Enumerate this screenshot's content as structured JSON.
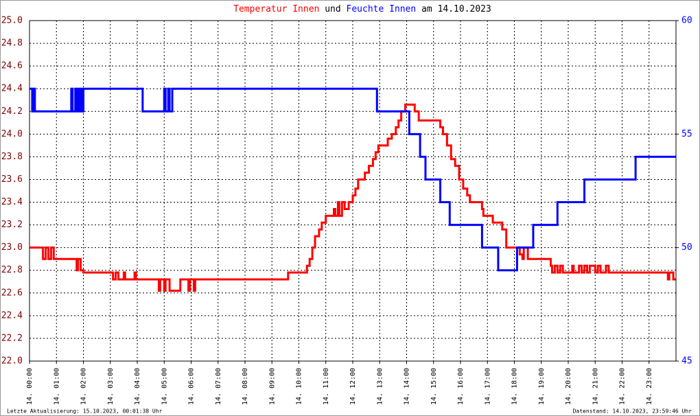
{
  "chart_data": {
    "type": "step-line",
    "title_parts": [
      "und",
      "am 14.10.2023"
    ],
    "footer_left": "Letzte Aktualisierung: 15.10.2023, 00:01:38 Uhr",
    "footer_right": "Datenstand: 14.10.2023, 23:59:46 Uhr",
    "xlim": [
      0,
      24
    ],
    "xticks": [
      {
        "value": 0,
        "label": "14. 00:00"
      },
      {
        "value": 1,
        "label": "14. 01:00"
      },
      {
        "value": 2,
        "label": "14. 02:00"
      },
      {
        "value": 3,
        "label": "14. 03:00"
      },
      {
        "value": 4,
        "label": "14. 04:00"
      },
      {
        "value": 5,
        "label": "14. 05:00"
      },
      {
        "value": 6,
        "label": "14. 06:00"
      },
      {
        "value": 7,
        "label": "14. 07:00"
      },
      {
        "value": 8,
        "label": "14. 08:00"
      },
      {
        "value": 9,
        "label": "14. 09:00"
      },
      {
        "value": 10,
        "label": "14. 10:00"
      },
      {
        "value": 11,
        "label": "14. 11:00"
      },
      {
        "value": 12,
        "label": "14. 12:00"
      },
      {
        "value": 13,
        "label": "14. 13:00"
      },
      {
        "value": 14,
        "label": "14. 14:00"
      },
      {
        "value": 15,
        "label": "14. 15:00"
      },
      {
        "value": 16,
        "label": "14. 16:00"
      },
      {
        "value": 17,
        "label": "14. 17:00"
      },
      {
        "value": 18,
        "label": "14. 18:00"
      },
      {
        "value": 19,
        "label": "14. 19:00"
      },
      {
        "value": 20,
        "label": "14. 20:00"
      },
      {
        "value": 21,
        "label": "14. 21:00"
      },
      {
        "value": 22,
        "label": "14. 22:00"
      },
      {
        "value": 23,
        "label": "14. 23:00"
      }
    ],
    "ylim": [
      22,
      25
    ],
    "yticks": [
      {
        "value": 22,
        "label": "22.0"
      },
      22.2,
      22.4,
      22.6,
      22.8,
      {
        "value": 23,
        "label": "23.0"
      },
      23.2,
      23.4,
      23.6,
      23.8,
      {
        "value": 24,
        "label": "24.0"
      },
      24.2,
      24.4,
      24.6,
      24.8,
      {
        "value": 25,
        "label": "25.0"
      }
    ],
    "y2lim": [
      45,
      60
    ],
    "y2ticks": [
      45,
      50,
      55,
      60
    ],
    "grid": true,
    "series": [
      {
        "name": "Temperatur Innen",
        "color": "#ff0000",
        "axis": "y",
        "x": [
          0,
          0.5,
          0.6,
          0.7,
          0.8,
          0.9,
          1.75,
          1.8,
          1.9,
          2.0,
          3.1,
          3.2,
          3.3,
          3.5,
          3.55,
          3.9,
          3.95,
          4.8,
          4.85,
          5.0,
          5.05,
          5.2,
          5.6,
          5.9,
          5.95,
          6.1,
          6.15,
          9.6,
          10.3,
          10.4,
          10.5,
          10.6,
          10.75,
          10.85,
          11.0,
          11.3,
          11.35,
          11.45,
          11.5,
          11.6,
          11.7,
          11.85,
          12.0,
          12.1,
          12.2,
          12.45,
          12.6,
          12.75,
          12.85,
          12.95,
          13.3,
          13.45,
          13.6,
          13.7,
          13.8,
          13.95,
          14.3,
          14.45,
          15.25,
          15.35,
          15.5,
          15.65,
          15.8,
          15.95,
          16.1,
          16.25,
          16.35,
          16.8,
          16.85,
          17.2,
          17.55,
          17.7,
          18.2,
          18.3,
          18.35,
          18.5,
          19.35,
          19.4,
          19.5,
          19.6,
          19.7,
          19.8,
          20.15,
          20.2,
          20.4,
          20.5,
          20.6,
          20.7,
          20.8,
          21.0,
          21.1,
          21.2,
          21.4,
          21.5,
          23.7,
          23.75,
          23.9
        ],
        "values": [
          23.0,
          22.9,
          23.0,
          22.9,
          23.0,
          22.9,
          22.8,
          22.9,
          22.8,
          22.78,
          22.72,
          22.78,
          22.72,
          22.78,
          22.72,
          22.78,
          22.72,
          22.62,
          22.72,
          22.62,
          22.72,
          22.62,
          22.72,
          22.62,
          22.72,
          22.62,
          22.72,
          22.78,
          22.84,
          22.9,
          23.0,
          23.1,
          23.16,
          23.22,
          23.28,
          23.34,
          23.28,
          23.4,
          23.28,
          23.4,
          23.34,
          23.4,
          23.46,
          23.52,
          23.6,
          23.66,
          23.72,
          23.78,
          23.84,
          23.9,
          23.96,
          24.0,
          24.06,
          24.12,
          24.2,
          24.26,
          24.2,
          24.12,
          24.06,
          24.0,
          23.9,
          23.78,
          23.72,
          23.6,
          23.52,
          23.46,
          23.4,
          23.34,
          23.28,
          23.22,
          23.16,
          23.0,
          22.94,
          22.9,
          23.0,
          22.9,
          22.84,
          22.78,
          22.84,
          22.78,
          22.84,
          22.78,
          22.84,
          22.78,
          22.84,
          22.78,
          22.84,
          22.78,
          22.84,
          22.78,
          22.84,
          22.78,
          22.84,
          22.78,
          22.72,
          22.78,
          22.72
        ]
      },
      {
        "name": "Feuchte Innen",
        "color": "#0000ff",
        "axis": "y2",
        "x": [
          0,
          0.1,
          0.15,
          0.2,
          1.55,
          1.6,
          1.7,
          1.75,
          1.8,
          1.85,
          1.9,
          1.95,
          2.0,
          4.2,
          5.0,
          5.05,
          5.15,
          5.2,
          5.3,
          12.9,
          14.1,
          14.5,
          14.7,
          15.25,
          15.6,
          16.8,
          17.4,
          18.1,
          18.7,
          19.6,
          20.6,
          22.5
        ],
        "values": [
          57,
          56,
          57,
          56,
          57,
          56,
          57,
          56,
          57,
          56,
          57,
          56,
          57,
          56,
          57,
          56,
          57,
          56,
          57,
          56,
          55,
          54,
          53,
          52,
          51,
          50,
          49,
          50,
          51,
          52,
          53,
          54
        ]
      }
    ]
  }
}
